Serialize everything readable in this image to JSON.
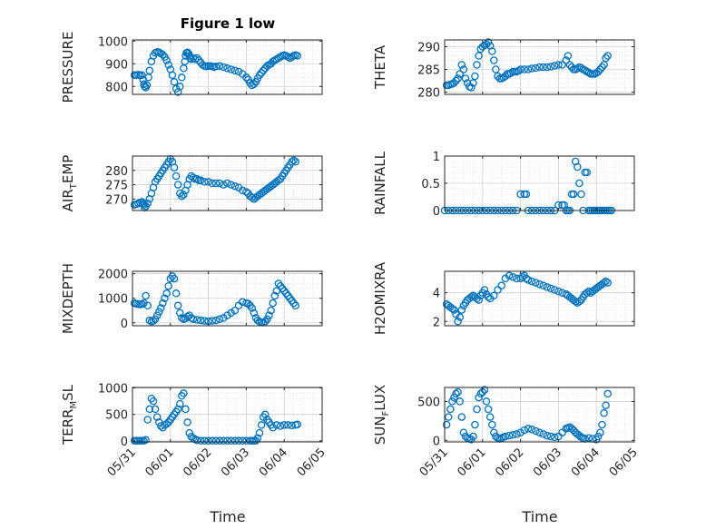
{
  "title": "Figure 1 low",
  "xlabel": "Time",
  "x_ticks": [
    "05/31",
    "06/01",
    "06/02",
    "06/03",
    "06/04",
    "06/05"
  ],
  "x_range": [
    0,
    5
  ],
  "colors": {
    "marker": "#0072BD",
    "grid": "#dfdfdf",
    "axis": "#262626"
  },
  "chart_data": [
    {
      "type": "scatter",
      "ylabel": "PRESSURE",
      "ylim": [
        765,
        1005
      ],
      "yticks": [
        800,
        900,
        1000
      ],
      "grid": true,
      "x": [
        0.05,
        0.1,
        0.15,
        0.2,
        0.25,
        0.28,
        0.3,
        0.32,
        0.35,
        0.38,
        0.42,
        0.45,
        0.5,
        0.55,
        0.6,
        0.65,
        0.7,
        0.75,
        0.8,
        0.85,
        0.9,
        0.95,
        1.0,
        1.05,
        1.1,
        1.15,
        1.2,
        1.25,
        1.3,
        1.35,
        1.38,
        1.4,
        1.42,
        1.45,
        1.48,
        1.5,
        1.52,
        1.55,
        1.6,
        1.65,
        1.7,
        1.75,
        1.8,
        1.85,
        1.9,
        1.95,
        2.0,
        2.05,
        2.1,
        2.15,
        2.2,
        2.3,
        2.4,
        2.5,
        2.6,
        2.7,
        2.8,
        2.9,
        3.0,
        3.05,
        3.1,
        3.15,
        3.2,
        3.25,
        3.3,
        3.35,
        3.4,
        3.45,
        3.5,
        3.55,
        3.6,
        3.65,
        3.7,
        3.75,
        3.8,
        3.85,
        3.9,
        3.95,
        4.0,
        4.05,
        4.1,
        4.15,
        4.2,
        4.25,
        4.3,
        4.35
      ],
      "y": [
        850,
        850,
        852,
        848,
        850,
        830,
        810,
        800,
        795,
        805,
        840,
        870,
        910,
        935,
        948,
        952,
        950,
        945,
        940,
        930,
        915,
        895,
        875,
        850,
        820,
        790,
        775,
        800,
        840,
        880,
        910,
        935,
        948,
        950,
        945,
        935,
        925,
        920,
        925,
        920,
        925,
        915,
        905,
        895,
        890,
        888,
        890,
        890,
        888,
        885,
        888,
        890,
        885,
        880,
        875,
        870,
        865,
        855,
        840,
        830,
        815,
        805,
        810,
        820,
        835,
        850,
        860,
        870,
        880,
        890,
        895,
        900,
        910,
        915,
        920,
        925,
        930,
        935,
        938,
        935,
        930,
        925,
        930,
        935,
        938,
        935
      ]
    },
    {
      "type": "scatter",
      "ylabel": "THETA",
      "ylim": [
        279.5,
        291.5
      ],
      "yticks": [
        280,
        285,
        290
      ],
      "grid": true,
      "x": [
        0.05,
        0.1,
        0.15,
        0.2,
        0.25,
        0.3,
        0.35,
        0.4,
        0.45,
        0.5,
        0.55,
        0.6,
        0.65,
        0.7,
        0.75,
        0.8,
        0.85,
        0.9,
        0.95,
        1.0,
        1.05,
        1.1,
        1.15,
        1.2,
        1.25,
        1.3,
        1.35,
        1.4,
        1.45,
        1.5,
        1.55,
        1.6,
        1.65,
        1.7,
        1.75,
        1.8,
        1.85,
        1.9,
        1.95,
        2.0,
        2.1,
        2.2,
        2.3,
        2.4,
        2.5,
        2.6,
        2.7,
        2.8,
        2.9,
        3.0,
        3.1,
        3.2,
        3.25,
        3.3,
        3.35,
        3.4,
        3.45,
        3.5,
        3.55,
        3.6,
        3.65,
        3.7,
        3.75,
        3.8,
        3.85,
        3.9,
        3.95,
        4.0,
        4.05,
        4.1,
        4.15,
        4.2,
        4.25,
        4.3
      ],
      "y": [
        281.5,
        281.5,
        281.7,
        281.8,
        282,
        282.5,
        283,
        284,
        286,
        285,
        283,
        282,
        281.2,
        281,
        282,
        283.5,
        286,
        288,
        289.5,
        290,
        290.3,
        290.5,
        291,
        290.2,
        289,
        287,
        285,
        283.5,
        283,
        283,
        283.2,
        283.5,
        284,
        284,
        284.2,
        284.5,
        284.5,
        284.5,
        284.7,
        285,
        285,
        285,
        285.2,
        285.3,
        285.5,
        285.5,
        285.5,
        285.6,
        285.8,
        286,
        286,
        287,
        288,
        286,
        285.5,
        285,
        285,
        285.2,
        285.5,
        285.3,
        285,
        284.8,
        284.5,
        284.3,
        284,
        284,
        284,
        284.2,
        284.5,
        285,
        285.5,
        286,
        287.5,
        288
      ]
    },
    {
      "type": "scatter",
      "ylabel": "AIR_TEMP",
      "ylim": [
        266,
        285
      ],
      "yticks": [
        270,
        275,
        280
      ],
      "grid": true,
      "x": [
        0.05,
        0.1,
        0.15,
        0.2,
        0.25,
        0.28,
        0.3,
        0.32,
        0.35,
        0.4,
        0.45,
        0.5,
        0.55,
        0.6,
        0.65,
        0.7,
        0.75,
        0.8,
        0.85,
        0.9,
        0.95,
        1.0,
        1.05,
        1.1,
        1.15,
        1.2,
        1.25,
        1.3,
        1.35,
        1.4,
        1.45,
        1.5,
        1.55,
        1.6,
        1.65,
        1.7,
        1.75,
        1.8,
        1.9,
        2.0,
        2.1,
        2.2,
        2.3,
        2.4,
        2.5,
        2.6,
        2.7,
        2.8,
        2.9,
        3.0,
        3.05,
        3.1,
        3.15,
        3.2,
        3.25,
        3.3,
        3.35,
        3.4,
        3.45,
        3.5,
        3.55,
        3.6,
        3.65,
        3.7,
        3.75,
        3.8,
        3.85,
        3.9,
        3.95,
        4.0,
        4.05,
        4.1,
        4.15,
        4.2,
        4.25,
        4.3
      ],
      "y": [
        268,
        268.2,
        268.5,
        268.8,
        269,
        268.5,
        268,
        267,
        267.5,
        268.5,
        270,
        272,
        274,
        276,
        277,
        278,
        279,
        280,
        281,
        282,
        283,
        284,
        283,
        281,
        278,
        275,
        272,
        271,
        271.5,
        273,
        275,
        277,
        278,
        277.5,
        277,
        277,
        276.5,
        276.5,
        276,
        276,
        275.5,
        275.5,
        275.5,
        275,
        275.5,
        275,
        274.5,
        274,
        273,
        272.5,
        272,
        271,
        270.5,
        270,
        270.5,
        271,
        271.5,
        272,
        272.5,
        273,
        273.5,
        274,
        274.5,
        275,
        275.5,
        276,
        276.5,
        277,
        278,
        279,
        280,
        281,
        282,
        283,
        283.5,
        283
      ]
    },
    {
      "type": "scatter",
      "ylabel": "RAINFALL",
      "ylim": [
        0,
        1
      ],
      "yticks": [
        0,
        0.5,
        1
      ],
      "grid": true,
      "x": [
        0.0,
        0.1,
        0.2,
        0.3,
        0.4,
        0.5,
        0.6,
        0.7,
        0.8,
        0.9,
        1.0,
        1.1,
        1.2,
        1.3,
        1.4,
        1.5,
        1.6,
        1.7,
        1.8,
        1.9,
        2.0,
        2.1,
        2.15,
        2.2,
        2.3,
        2.4,
        2.5,
        2.6,
        2.7,
        2.8,
        2.9,
        3.0,
        3.1,
        3.15,
        3.2,
        3.25,
        3.3,
        3.35,
        3.4,
        3.45,
        3.5,
        3.55,
        3.6,
        3.65,
        3.7,
        3.75,
        3.8,
        3.85,
        3.9,
        3.95,
        4.0,
        4.05,
        4.1,
        4.15,
        4.2,
        4.25,
        4.3,
        4.35,
        4.4
      ],
      "y": [
        0,
        0,
        0,
        0,
        0,
        0,
        0,
        0,
        0,
        0,
        0,
        0,
        0,
        0,
        0,
        0,
        0,
        0,
        0,
        0,
        0.3,
        0.3,
        0.3,
        0,
        0,
        0,
        0,
        0,
        0,
        0,
        0,
        0.1,
        0.1,
        0.1,
        0,
        0,
        0,
        0.3,
        0.3,
        0.9,
        0.8,
        0.5,
        0.3,
        0,
        0.7,
        0.7,
        0,
        0,
        0,
        0,
        0,
        0,
        0,
        0,
        0,
        0,
        0,
        0,
        0
      ]
    },
    {
      "type": "scatter",
      "ylabel": "MIXDEPTH",
      "ylim": [
        -120,
        2100
      ],
      "yticks": [
        0,
        1000,
        2000
      ],
      "grid": true,
      "x": [
        0.05,
        0.1,
        0.15,
        0.2,
        0.25,
        0.3,
        0.35,
        0.4,
        0.45,
        0.5,
        0.55,
        0.6,
        0.65,
        0.7,
        0.75,
        0.8,
        0.85,
        0.9,
        0.95,
        1.0,
        1.05,
        1.1,
        1.15,
        1.2,
        1.25,
        1.3,
        1.35,
        1.4,
        1.45,
        1.5,
        1.55,
        1.6,
        1.7,
        1.8,
        1.9,
        2.0,
        2.1,
        2.2,
        2.3,
        2.4,
        2.5,
        2.6,
        2.7,
        2.8,
        2.9,
        3.0,
        3.05,
        3.1,
        3.15,
        3.2,
        3.25,
        3.3,
        3.35,
        3.4,
        3.45,
        3.5,
        3.55,
        3.6,
        3.65,
        3.7,
        3.75,
        3.8,
        3.85,
        3.9,
        3.95,
        4.0,
        4.05,
        4.1,
        4.15,
        4.2,
        4.25,
        4.3
      ],
      "y": [
        800,
        780,
        760,
        750,
        760,
        800,
        1100,
        700,
        100,
        50,
        80,
        150,
        300,
        450,
        600,
        800,
        1000,
        1200,
        1500,
        1800,
        1900,
        1800,
        1200,
        700,
        400,
        200,
        150,
        180,
        250,
        300,
        200,
        150,
        120,
        100,
        80,
        60,
        80,
        100,
        150,
        200,
        300,
        400,
        500,
        700,
        850,
        800,
        780,
        700,
        600,
        400,
        200,
        100,
        50,
        20,
        10,
        50,
        150,
        300,
        500,
        800,
        1100,
        1300,
        1600,
        1500,
        1400,
        1300,
        1200,
        1100,
        1000,
        900,
        800,
        700
      ]
    },
    {
      "type": "scatter",
      "ylabel": "H2OMIXRA",
      "ylim": [
        1.7,
        5.5
      ],
      "yticks": [
        2,
        4
      ],
      "grid": true,
      "x": [
        0.05,
        0.1,
        0.15,
        0.2,
        0.25,
        0.3,
        0.35,
        0.4,
        0.45,
        0.5,
        0.55,
        0.6,
        0.65,
        0.7,
        0.75,
        0.8,
        0.85,
        0.9,
        0.95,
        1.0,
        1.05,
        1.1,
        1.15,
        1.2,
        1.3,
        1.4,
        1.5,
        1.6,
        1.7,
        1.8,
        1.9,
        2.0,
        2.05,
        2.1,
        2.15,
        2.2,
        2.3,
        2.4,
        2.5,
        2.6,
        2.7,
        2.8,
        2.9,
        3.0,
        3.1,
        3.2,
        3.25,
        3.3,
        3.35,
        3.4,
        3.45,
        3.5,
        3.55,
        3.6,
        3.65,
        3.7,
        3.75,
        3.8,
        3.85,
        3.9,
        3.95,
        4.0,
        4.05,
        4.1,
        4.15,
        4.2,
        4.25,
        4.3
      ],
      "y": [
        3.2,
        3.1,
        3.0,
        2.9,
        2.8,
        2.5,
        2.0,
        2.3,
        2.8,
        3.1,
        3.3,
        3.5,
        3.6,
        3.7,
        3.8,
        3.7,
        3.6,
        3.5,
        3.8,
        4.0,
        4.2,
        3.9,
        3.7,
        3.6,
        3.8,
        4.2,
        4.5,
        5.0,
        5.2,
        5.1,
        5.0,
        5.0,
        5.1,
        5.2,
        5.0,
        4.9,
        4.8,
        4.7,
        4.6,
        4.5,
        4.4,
        4.3,
        4.2,
        4.1,
        4.0,
        3.9,
        3.8,
        3.7,
        3.6,
        3.5,
        3.4,
        3.3,
        3.4,
        3.5,
        3.7,
        3.9,
        4.0,
        4.1,
        4.0,
        4.1,
        4.2,
        4.3,
        4.4,
        4.5,
        4.6,
        4.7,
        4.8,
        4.7
      ]
    },
    {
      "type": "scatter",
      "ylabel": "TERR_MSL",
      "ylim": [
        -20,
        1010
      ],
      "yticks": [
        0,
        500,
        1000
      ],
      "grid": true,
      "x": [
        0.05,
        0.1,
        0.15,
        0.2,
        0.25,
        0.3,
        0.35,
        0.4,
        0.45,
        0.5,
        0.55,
        0.6,
        0.65,
        0.7,
        0.75,
        0.8,
        0.85,
        0.9,
        0.95,
        1.0,
        1.05,
        1.1,
        1.15,
        1.2,
        1.25,
        1.3,
        1.35,
        1.4,
        1.45,
        1.5,
        1.55,
        1.6,
        1.65,
        1.7,
        1.8,
        1.9,
        2.0,
        2.1,
        2.2,
        2.3,
        2.4,
        2.5,
        2.6,
        2.7,
        2.8,
        2.9,
        3.0,
        3.1,
        3.15,
        3.2,
        3.25,
        3.3,
        3.35,
        3.4,
        3.45,
        3.5,
        3.55,
        3.6,
        3.65,
        3.7,
        3.8,
        3.9,
        4.0,
        4.1,
        4.2,
        4.3,
        4.35
      ],
      "y": [
        0,
        0,
        0,
        0,
        0,
        0,
        20,
        400,
        600,
        800,
        750,
        600,
        450,
        350,
        280,
        250,
        300,
        320,
        350,
        400,
        450,
        500,
        550,
        600,
        700,
        850,
        900,
        600,
        350,
        150,
        80,
        50,
        30,
        10,
        0,
        0,
        0,
        0,
        0,
        0,
        0,
        0,
        0,
        0,
        0,
        0,
        0,
        0,
        0,
        0,
        0,
        50,
        150,
        300,
        450,
        500,
        400,
        350,
        300,
        250,
        300,
        280,
        300,
        300,
        290,
        300,
        310
      ]
    },
    {
      "type": "scatter",
      "ylabel": "SUN_FLUX",
      "ylim": [
        -20,
        680
      ],
      "yticks": [
        0,
        500
      ],
      "grid": true,
      "x": [
        0.05,
        0.1,
        0.15,
        0.2,
        0.25,
        0.3,
        0.35,
        0.4,
        0.45,
        0.5,
        0.55,
        0.6,
        0.65,
        0.7,
        0.75,
        0.8,
        0.85,
        0.9,
        0.95,
        1.0,
        1.05,
        1.1,
        1.15,
        1.2,
        1.25,
        1.3,
        1.35,
        1.4,
        1.45,
        1.5,
        1.55,
        1.6,
        1.7,
        1.8,
        1.9,
        2.0,
        2.1,
        2.2,
        2.3,
        2.4,
        2.5,
        2.6,
        2.7,
        2.8,
        2.9,
        3.0,
        3.1,
        3.2,
        3.25,
        3.3,
        3.35,
        3.4,
        3.45,
        3.5,
        3.55,
        3.6,
        3.65,
        3.7,
        3.8,
        3.9,
        4.0,
        4.05,
        4.1,
        4.15,
        4.2,
        4.25,
        4.3
      ],
      "y": [
        200,
        300,
        400,
        500,
        550,
        600,
        620,
        500,
        300,
        100,
        50,
        30,
        20,
        10,
        50,
        200,
        400,
        550,
        600,
        620,
        650,
        500,
        400,
        300,
        200,
        100,
        50,
        30,
        20,
        30,
        40,
        50,
        60,
        70,
        80,
        100,
        130,
        150,
        140,
        120,
        100,
        80,
        60,
        50,
        40,
        50,
        100,
        150,
        160,
        170,
        150,
        130,
        100,
        80,
        60,
        40,
        30,
        20,
        30,
        20,
        10,
        50,
        100,
        200,
        350,
        450,
        600
      ]
    }
  ]
}
